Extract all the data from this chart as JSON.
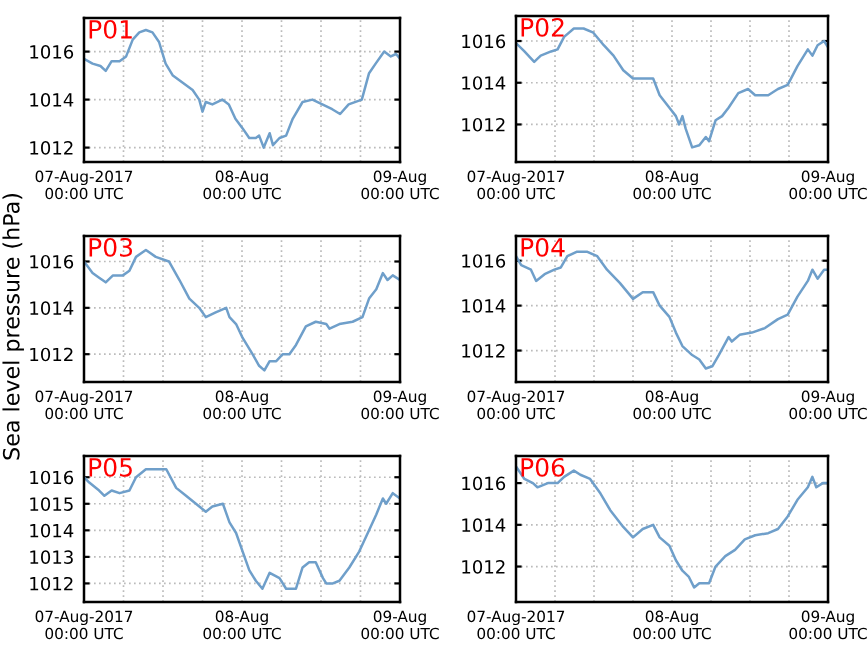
{
  "chart_data": [
    {
      "type": "line",
      "title": "P01",
      "grid": true,
      "xlim": [
        "2017-08-07T00:00",
        "2017-08-09T00:00"
      ],
      "xticks": [
        {
          "value": "2017-08-07T00:00",
          "label": "07-Aug-2017\n00:00 UTC"
        },
        {
          "value": "2017-08-07T06:00",
          "label": null
        },
        {
          "value": "2017-08-07T12:00",
          "label": null
        },
        {
          "value": "2017-08-07T18:00",
          "label": null
        },
        {
          "value": "2017-08-08T00:00",
          "label": "08-Aug\n00:00 UTC"
        },
        {
          "value": "2017-08-08T06:00",
          "label": null
        },
        {
          "value": "2017-08-08T12:00",
          "label": null
        },
        {
          "value": "2017-08-08T18:00",
          "label": null
        },
        {
          "value": "2017-08-09T00:00",
          "label": "09-Aug\n00:00 UTC"
        }
      ],
      "ylim": [
        1011.4,
        1017.4
      ],
      "yticks": [
        1012,
        1014,
        1016
      ],
      "series": [
        {
          "color": "#6f9fca",
          "x": [
            "2017-08-07T00:00",
            "2017-08-07T01:18",
            "2017-08-07T02:30",
            "2017-08-07T03:18",
            "2017-08-07T04:12",
            "2017-08-07T05:24",
            "2017-08-07T06:24",
            "2017-08-07T07:24",
            "2017-08-07T08:24",
            "2017-08-07T09:24",
            "2017-08-07T10:24",
            "2017-08-07T11:24",
            "2017-08-07T12:24",
            "2017-08-07T13:30",
            "2017-08-07T15:00",
            "2017-08-07T16:30",
            "2017-08-07T17:30",
            "2017-08-07T18:00",
            "2017-08-07T18:30",
            "2017-08-07T19:30",
            "2017-08-07T21:00",
            "2017-08-07T22:00",
            "2017-08-07T23:00",
            "2017-08-08T00:06",
            "2017-08-08T01:06",
            "2017-08-08T02:06",
            "2017-08-08T02:36",
            "2017-08-08T03:18",
            "2017-08-08T04:12",
            "2017-08-08T04:42",
            "2017-08-08T05:42",
            "2017-08-08T06:42",
            "2017-08-08T07:42",
            "2017-08-08T09:12",
            "2017-08-08T10:42",
            "2017-08-08T12:12",
            "2017-08-08T13:42",
            "2017-08-08T14:54",
            "2017-08-08T16:12",
            "2017-08-08T18:12",
            "2017-08-08T19:18",
            "2017-08-08T20:18",
            "2017-08-08T21:36",
            "2017-08-08T22:36",
            "2017-08-08T23:24",
            "2017-08-09T00:00"
          ],
          "values": [
            1015.7,
            1015.5,
            1015.4,
            1015.2,
            1015.6,
            1015.6,
            1015.8,
            1016.5,
            1016.8,
            1016.9,
            1016.8,
            1016.4,
            1015.5,
            1015.0,
            1014.7,
            1014.4,
            1014.0,
            1013.5,
            1013.9,
            1013.8,
            1014.0,
            1013.8,
            1013.2,
            1012.8,
            1012.4,
            1012.4,
            1012.5,
            1012.0,
            1012.6,
            1012.1,
            1012.4,
            1012.5,
            1013.2,
            1013.9,
            1014.0,
            1013.8,
            1013.6,
            1013.4,
            1013.8,
            1014.0,
            1015.1,
            1015.5,
            1016.0,
            1015.8,
            1015.9,
            1015.7
          ]
        }
      ]
    },
    {
      "type": "line",
      "title": "P02",
      "grid": true,
      "xlim": [
        "2017-08-07T00:00",
        "2017-08-09T00:00"
      ],
      "xticks": [
        {
          "value": "2017-08-07T00:00",
          "label": "07-Aug-2017\n00:00 UTC"
        },
        {
          "value": "2017-08-07T06:00",
          "label": null
        },
        {
          "value": "2017-08-07T12:00",
          "label": null
        },
        {
          "value": "2017-08-07T18:00",
          "label": null
        },
        {
          "value": "2017-08-08T00:00",
          "label": "08-Aug\n00:00 UTC"
        },
        {
          "value": "2017-08-08T06:00",
          "label": null
        },
        {
          "value": "2017-08-08T12:00",
          "label": null
        },
        {
          "value": "2017-08-08T18:00",
          "label": null
        },
        {
          "value": "2017-08-09T00:00",
          "label": "09-Aug\n00:00 UTC"
        }
      ],
      "ylim": [
        1010.2,
        1017.2
      ],
      "yticks": [
        1012,
        1014,
        1016
      ],
      "series": [
        {
          "color": "#6f9fca",
          "x": [
            "2017-08-07T00:00",
            "2017-08-07T01:18",
            "2017-08-07T02:48",
            "2017-08-07T03:48",
            "2017-08-07T05:24",
            "2017-08-07T06:24",
            "2017-08-07T07:24",
            "2017-08-07T08:54",
            "2017-08-07T10:24",
            "2017-08-07T11:54",
            "2017-08-07T13:30",
            "2017-08-07T15:00",
            "2017-08-07T16:30",
            "2017-08-07T18:00",
            "2017-08-07T19:30",
            "2017-08-07T21:06",
            "2017-08-07T22:06",
            "2017-08-07T23:36",
            "2017-08-08T00:36",
            "2017-08-08T01:06",
            "2017-08-08T01:36",
            "2017-08-08T02:06",
            "2017-08-08T03:06",
            "2017-08-08T04:12",
            "2017-08-08T05:12",
            "2017-08-08T05:42",
            "2017-08-08T06:42",
            "2017-08-08T07:42",
            "2017-08-08T08:42",
            "2017-08-08T10:12",
            "2017-08-08T11:42",
            "2017-08-08T12:48",
            "2017-08-08T14:48",
            "2017-08-08T16:18",
            "2017-08-08T17:48",
            "2017-08-08T19:18",
            "2017-08-08T20:54",
            "2017-08-08T21:36",
            "2017-08-08T22:24",
            "2017-08-08T23:24",
            "2017-08-09T00:00"
          ],
          "values": [
            1015.9,
            1015.5,
            1015.0,
            1015.3,
            1015.5,
            1015.6,
            1016.2,
            1016.6,
            1016.6,
            1016.4,
            1015.8,
            1015.3,
            1014.6,
            1014.2,
            1014.2,
            1014.2,
            1013.4,
            1012.8,
            1012.4,
            1012.0,
            1012.4,
            1011.8,
            1010.9,
            1011.0,
            1011.4,
            1011.2,
            1012.2,
            1012.4,
            1012.8,
            1013.5,
            1013.7,
            1013.4,
            1013.4,
            1013.7,
            1013.9,
            1014.8,
            1015.6,
            1015.3,
            1015.8,
            1016.0,
            1015.7
          ]
        }
      ]
    },
    {
      "type": "line",
      "title": "P03",
      "ylabel": "Sea level pressure (hPa)",
      "grid": true,
      "xlim": [
        "2017-08-07T00:00",
        "2017-08-09T00:00"
      ],
      "xticks": [
        {
          "value": "2017-08-07T00:00",
          "label": "07-Aug-2017\n00:00 UTC"
        },
        {
          "value": "2017-08-07T06:00",
          "label": null
        },
        {
          "value": "2017-08-07T12:00",
          "label": null
        },
        {
          "value": "2017-08-07T18:00",
          "label": null
        },
        {
          "value": "2017-08-08T00:00",
          "label": "08-Aug\n00:00 UTC"
        },
        {
          "value": "2017-08-08T06:00",
          "label": null
        },
        {
          "value": "2017-08-08T12:00",
          "label": null
        },
        {
          "value": "2017-08-08T18:00",
          "label": null
        },
        {
          "value": "2017-08-09T00:00",
          "label": "09-Aug\n00:00 UTC"
        }
      ],
      "ylim": [
        1010.8,
        1017.1
      ],
      "yticks": [
        1012,
        1014,
        1016
      ],
      "series": [
        {
          "color": "#6f9fca",
          "x": [
            "2017-08-07T00:00",
            "2017-08-07T01:18",
            "2017-08-07T02:18",
            "2017-08-07T03:18",
            "2017-08-07T04:24",
            "2017-08-07T05:54",
            "2017-08-07T06:54",
            "2017-08-07T07:54",
            "2017-08-07T09:24",
            "2017-08-07T10:54",
            "2017-08-07T12:54",
            "2017-08-07T14:30",
            "2017-08-07T16:00",
            "2017-08-07T17:30",
            "2017-08-07T18:30",
            "2017-08-07T20:00",
            "2017-08-07T21:36",
            "2017-08-07T22:06",
            "2017-08-07T23:06",
            "2017-08-08T00:06",
            "2017-08-08T01:36",
            "2017-08-08T02:36",
            "2017-08-08T03:24",
            "2017-08-08T04:12",
            "2017-08-08T05:12",
            "2017-08-08T06:12",
            "2017-08-08T07:12",
            "2017-08-08T08:12",
            "2017-08-08T09:42",
            "2017-08-08T11:12",
            "2017-08-08T12:48",
            "2017-08-08T13:18",
            "2017-08-08T14:48",
            "2017-08-08T16:48",
            "2017-08-08T18:18",
            "2017-08-08T19:18",
            "2017-08-08T20:24",
            "2017-08-08T21:24",
            "2017-08-08T22:06",
            "2017-08-08T22:54",
            "2017-08-09T00:00"
          ],
          "values": [
            1016.0,
            1015.5,
            1015.3,
            1015.1,
            1015.4,
            1015.4,
            1015.6,
            1016.2,
            1016.5,
            1016.2,
            1016.0,
            1015.2,
            1014.4,
            1014.0,
            1013.6,
            1013.8,
            1014.0,
            1013.6,
            1013.3,
            1012.7,
            1012.0,
            1011.5,
            1011.3,
            1011.7,
            1011.7,
            1012.0,
            1012.0,
            1012.4,
            1013.2,
            1013.4,
            1013.3,
            1013.1,
            1013.3,
            1013.4,
            1013.6,
            1014.4,
            1014.8,
            1015.5,
            1015.2,
            1015.4,
            1015.2
          ]
        }
      ]
    },
    {
      "type": "line",
      "title": "P04",
      "grid": true,
      "xlim": [
        "2017-08-07T00:00",
        "2017-08-09T00:00"
      ],
      "xticks": [
        {
          "value": "2017-08-07T00:00",
          "label": "07-Aug-2017\n00:00 UTC"
        },
        {
          "value": "2017-08-07T06:00",
          "label": null
        },
        {
          "value": "2017-08-07T12:00",
          "label": null
        },
        {
          "value": "2017-08-07T18:00",
          "label": null
        },
        {
          "value": "2017-08-08T00:00",
          "label": "08-Aug\n00:00 UTC"
        },
        {
          "value": "2017-08-08T06:00",
          "label": null
        },
        {
          "value": "2017-08-08T12:00",
          "label": null
        },
        {
          "value": "2017-08-08T18:00",
          "label": null
        },
        {
          "value": "2017-08-09T00:00",
          "label": "09-Aug\n00:00 UTC"
        }
      ],
      "ylim": [
        1010.6,
        1017.1
      ],
      "yticks": [
        1012,
        1014,
        1016
      ],
      "series": [
        {
          "color": "#6f9fca",
          "x": [
            "2017-08-07T00:00",
            "2017-08-07T00:48",
            "2017-08-07T02:18",
            "2017-08-07T03:06",
            "2017-08-07T04:24",
            "2017-08-07T05:54",
            "2017-08-07T06:54",
            "2017-08-07T07:54",
            "2017-08-07T09:24",
            "2017-08-07T10:54",
            "2017-08-07T12:30",
            "2017-08-07T14:00",
            "2017-08-07T16:00",
            "2017-08-07T18:00",
            "2017-08-07T19:30",
            "2017-08-07T21:06",
            "2017-08-07T22:06",
            "2017-08-07T23:36",
            "2017-08-08T00:36",
            "2017-08-08T01:36",
            "2017-08-08T03:06",
            "2017-08-08T04:12",
            "2017-08-08T05:12",
            "2017-08-08T06:12",
            "2017-08-08T07:12",
            "2017-08-08T08:42",
            "2017-08-08T09:12",
            "2017-08-08T10:24",
            "2017-08-08T12:18",
            "2017-08-08T14:18",
            "2017-08-08T16:18",
            "2017-08-08T17:48",
            "2017-08-08T19:18",
            "2017-08-08T20:54",
            "2017-08-08T21:36",
            "2017-08-08T22:24",
            "2017-08-08T23:24",
            "2017-08-09T00:00"
          ],
          "values": [
            1016.2,
            1015.8,
            1015.6,
            1015.1,
            1015.4,
            1015.6,
            1015.7,
            1016.2,
            1016.4,
            1016.4,
            1016.2,
            1015.6,
            1015.0,
            1014.3,
            1014.6,
            1014.6,
            1014.0,
            1013.5,
            1012.8,
            1012.2,
            1011.8,
            1011.6,
            1011.2,
            1011.3,
            1011.8,
            1012.6,
            1012.4,
            1012.7,
            1012.8,
            1013.0,
            1013.4,
            1013.6,
            1014.4,
            1015.1,
            1015.6,
            1015.2,
            1015.6,
            1015.6
          ]
        }
      ]
    },
    {
      "type": "line",
      "title": "P05",
      "grid": true,
      "xlim": [
        "2017-08-07T00:00",
        "2017-08-09T00:00"
      ],
      "xticks": [
        {
          "value": "2017-08-07T00:00",
          "label": "07-Aug-2017\n00:00 UTC"
        },
        {
          "value": "2017-08-07T06:00",
          "label": null
        },
        {
          "value": "2017-08-07T12:00",
          "label": null
        },
        {
          "value": "2017-08-07T18:00",
          "label": null
        },
        {
          "value": "2017-08-08T00:00",
          "label": "08-Aug\n00:00 UTC"
        },
        {
          "value": "2017-08-08T06:00",
          "label": null
        },
        {
          "value": "2017-08-08T12:00",
          "label": null
        },
        {
          "value": "2017-08-08T18:00",
          "label": null
        },
        {
          "value": "2017-08-09T00:00",
          "label": "09-Aug\n00:00 UTC"
        }
      ],
      "ylim": [
        1011.3,
        1016.8
      ],
      "yticks": [
        1012,
        1013,
        1014,
        1015,
        1016
      ],
      "series": [
        {
          "color": "#6f9fca",
          "x": [
            "2017-08-07T00:00",
            "2017-08-07T00:48",
            "2017-08-07T02:18",
            "2017-08-07T03:06",
            "2017-08-07T04:12",
            "2017-08-07T05:24",
            "2017-08-07T06:54",
            "2017-08-07T07:54",
            "2017-08-07T09:24",
            "2017-08-07T10:54",
            "2017-08-07T12:30",
            "2017-08-07T14:00",
            "2017-08-07T15:30",
            "2017-08-07T17:00",
            "2017-08-07T18:30",
            "2017-08-07T19:30",
            "2017-08-07T21:06",
            "2017-08-07T22:06",
            "2017-08-07T23:06",
            "2017-08-08T00:06",
            "2017-08-08T01:06",
            "2017-08-08T02:06",
            "2017-08-08T03:06",
            "2017-08-08T04:12",
            "2017-08-08T05:42",
            "2017-08-08T06:42",
            "2017-08-08T08:12",
            "2017-08-08T09:12",
            "2017-08-08T10:12",
            "2017-08-08T11:12",
            "2017-08-08T12:18",
            "2017-08-08T12:48",
            "2017-08-08T13:48",
            "2017-08-08T14:48",
            "2017-08-08T16:18",
            "2017-08-08T17:48",
            "2017-08-08T19:18",
            "2017-08-08T20:24",
            "2017-08-08T21:24",
            "2017-08-08T21:54",
            "2017-08-08T22:54",
            "2017-08-09T00:00"
          ],
          "values": [
            1016.0,
            1015.8,
            1015.5,
            1015.3,
            1015.5,
            1015.4,
            1015.5,
            1016.0,
            1016.3,
            1016.3,
            1016.3,
            1015.6,
            1015.3,
            1015.0,
            1014.7,
            1014.9,
            1015.0,
            1014.3,
            1013.9,
            1013.2,
            1012.5,
            1012.1,
            1011.8,
            1012.4,
            1012.2,
            1011.8,
            1011.8,
            1012.6,
            1012.8,
            1012.8,
            1012.2,
            1012.0,
            1012.0,
            1012.1,
            1012.6,
            1013.2,
            1014.0,
            1014.6,
            1015.2,
            1015.0,
            1015.4,
            1015.2
          ]
        }
      ]
    },
    {
      "type": "line",
      "title": "P06",
      "grid": true,
      "xlim": [
        "2017-08-07T00:00",
        "2017-08-09T00:00"
      ],
      "xticks": [
        {
          "value": "2017-08-07T00:00",
          "label": "07-Aug-2017\n00:00 UTC"
        },
        {
          "value": "2017-08-07T06:00",
          "label": null
        },
        {
          "value": "2017-08-07T12:00",
          "label": null
        },
        {
          "value": "2017-08-07T18:00",
          "label": null
        },
        {
          "value": "2017-08-08T00:00",
          "label": "08-Aug\n00:00 UTC"
        },
        {
          "value": "2017-08-08T06:00",
          "label": null
        },
        {
          "value": "2017-08-08T12:00",
          "label": null
        },
        {
          "value": "2017-08-08T18:00",
          "label": null
        },
        {
          "value": "2017-08-09T00:00",
          "label": "09-Aug\n00:00 UTC"
        }
      ],
      "ylim": [
        1010.3,
        1017.3
      ],
      "yticks": [
        1012,
        1014,
        1016
      ],
      "series": [
        {
          "color": "#6f9fca",
          "x": [
            "2017-08-07T00:00",
            "2017-08-07T01:18",
            "2017-08-07T02:36",
            "2017-08-07T03:18",
            "2017-08-07T04:54",
            "2017-08-07T06:24",
            "2017-08-07T07:24",
            "2017-08-07T08:54",
            "2017-08-07T09:54",
            "2017-08-07T11:24",
            "2017-08-07T13:00",
            "2017-08-07T14:30",
            "2017-08-07T16:30",
            "2017-08-07T18:00",
            "2017-08-07T19:30",
            "2017-08-07T21:06",
            "2017-08-07T22:06",
            "2017-08-07T23:36",
            "2017-08-08T00:36",
            "2017-08-08T01:36",
            "2017-08-08T02:36",
            "2017-08-08T03:24",
            "2017-08-08T04:12",
            "2017-08-08T05:42",
            "2017-08-08T06:42",
            "2017-08-08T08:12",
            "2017-08-08T09:42",
            "2017-08-08T11:12",
            "2017-08-08T12:48",
            "2017-08-08T14:48",
            "2017-08-08T16:18",
            "2017-08-08T17:48",
            "2017-08-08T19:18",
            "2017-08-08T20:54",
            "2017-08-08T21:36",
            "2017-08-08T22:12",
            "2017-08-08T23:12",
            "2017-08-09T00:00"
          ],
          "values": [
            1016.8,
            1016.2,
            1016.0,
            1015.8,
            1016.0,
            1016.0,
            1016.3,
            1016.6,
            1016.4,
            1016.2,
            1015.5,
            1014.7,
            1013.9,
            1013.4,
            1013.8,
            1014.0,
            1013.4,
            1013.0,
            1012.3,
            1011.8,
            1011.5,
            1011.0,
            1011.2,
            1011.2,
            1012.0,
            1012.5,
            1012.8,
            1013.3,
            1013.5,
            1013.6,
            1013.8,
            1014.4,
            1015.2,
            1015.8,
            1016.3,
            1015.8,
            1016.0,
            1016.0
          ]
        }
      ]
    }
  ]
}
